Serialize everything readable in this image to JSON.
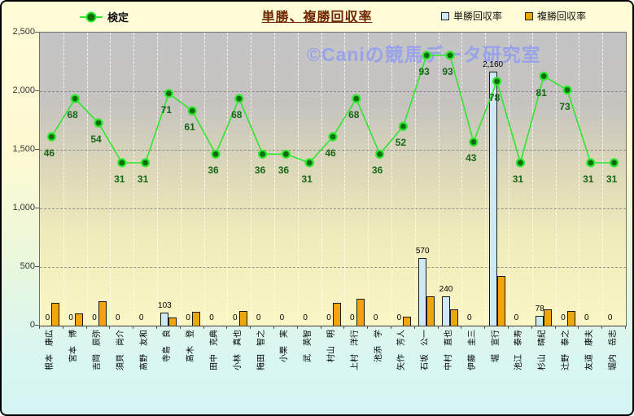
{
  "header": {
    "title": "単勝、複勝回収率",
    "legend_line": "検定",
    "legend_win": "単勝回収率",
    "legend_place": "複勝回収率"
  },
  "watermark": "©Caniの競馬データ研究室",
  "y_axis": {
    "tick_labels": [
      "2,500",
      "2,000",
      "1,500",
      "1,000",
      "500",
      "0"
    ]
  },
  "colors": {
    "line": "#2ee62e",
    "dot_fill": "#0a6e0a",
    "win_bar": "#cfe9f4",
    "place_bar": "#f0a50a",
    "title_text": "#6e2600",
    "line_label_text": "#176617",
    "watermark_text": "#949ee8"
  },
  "chart_data": {
    "type": "combo_bar_line",
    "title": "単勝、複勝回収率",
    "categories": [
      "根本　康広",
      "宮本　博",
      "吉岡　辰弥",
      "須貝　尚介",
      "高野　友和",
      "寺島　良",
      "高木　登",
      "田中　克典",
      "小林　真也",
      "梅田　智之",
      "小栗　実",
      "武　英智",
      "村山　明",
      "上村　洋行",
      "池添　学",
      "矢作　芳人",
      "石坂　公一",
      "中村　直也",
      "伊藤　圭三",
      "堀　宣行",
      "池江　泰寿",
      "杉山　晴紀",
      "辻野　泰之",
      "友道　康夫",
      "堀内　岳志"
    ],
    "series": [
      {
        "name": "検定",
        "type": "line",
        "values": [
          46,
          68,
          54,
          31,
          31,
          71,
          61,
          36,
          68,
          36,
          36,
          31,
          46,
          68,
          36,
          52,
          93,
          93,
          43,
          78,
          31,
          81,
          73,
          31,
          31
        ],
        "labels_shown": true
      },
      {
        "name": "単勝回収率",
        "type": "bar",
        "values": [
          0,
          0,
          0,
          0,
          0,
          103,
          0,
          0,
          0,
          0,
          0,
          0,
          0,
          0,
          0,
          0,
          570,
          240,
          0,
          2160,
          0,
          78,
          0,
          0,
          0
        ],
        "labels_shown": true
      },
      {
        "name": "複勝回収率",
        "type": "bar",
        "values": [
          190,
          95,
          200,
          0,
          0,
          60,
          110,
          0,
          120,
          0,
          0,
          0,
          185,
          225,
          0,
          70,
          245,
          130,
          0,
          420,
          0,
          130,
          115,
          0,
          0
        ],
        "labels_shown": false
      }
    ],
    "ylim": [
      0,
      2500
    ],
    "ytick_interval": 500,
    "line_secondary_axis_transform": {
      "offset": 931,
      "scale": 14.78
    },
    "grid": true,
    "legend_position": "top"
  }
}
